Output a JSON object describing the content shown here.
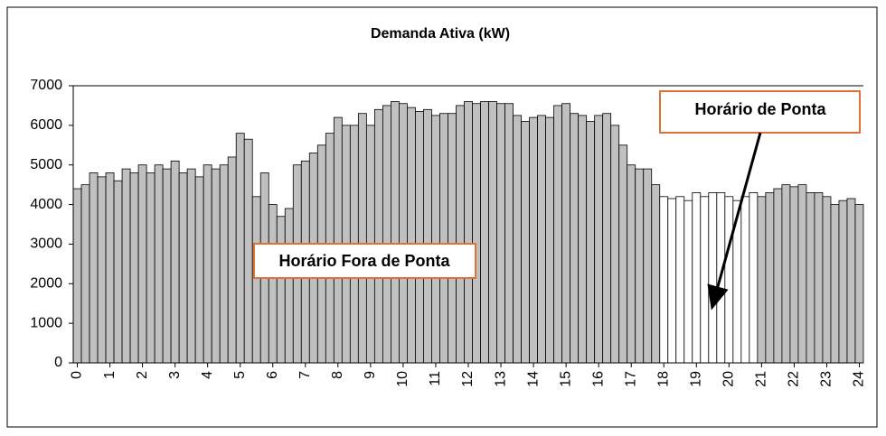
{
  "chart_data": {
    "type": "bar",
    "title": "Demanda Ativa (kW)",
    "categories": [
      "0",
      null,
      null,
      null,
      "1",
      null,
      null,
      null,
      "2",
      null,
      null,
      null,
      "3",
      null,
      null,
      null,
      "4",
      null,
      null,
      null,
      "5",
      null,
      null,
      null,
      "6",
      null,
      null,
      null,
      "7",
      null,
      null,
      null,
      "8",
      null,
      null,
      null,
      "9",
      null,
      null,
      null,
      "10",
      null,
      null,
      null,
      "11",
      null,
      null,
      null,
      "12",
      null,
      null,
      null,
      "13",
      null,
      null,
      null,
      "14",
      null,
      null,
      null,
      "15",
      null,
      null,
      null,
      "16",
      null,
      null,
      null,
      "17",
      null,
      null,
      null,
      "18",
      null,
      null,
      null,
      "19",
      null,
      null,
      null,
      "20",
      null,
      null,
      null,
      "21",
      null,
      null,
      null,
      "22",
      null,
      null,
      null,
      "23",
      null,
      null,
      null,
      "24"
    ],
    "values": [
      4400,
      4500,
      4800,
      4700,
      4800,
      4600,
      4900,
      4800,
      5000,
      4800,
      5000,
      4900,
      5100,
      4800,
      4900,
      4700,
      5000,
      4900,
      5000,
      5200,
      5800,
      5650,
      4200,
      4800,
      4000,
      3700,
      3900,
      5000,
      5100,
      5300,
      5500,
      5800,
      6200,
      6000,
      6000,
      6300,
      6000,
      6400,
      6500,
      6600,
      6550,
      6450,
      6350,
      6400,
      6250,
      6300,
      6300,
      6500,
      6600,
      6550,
      6600,
      6600,
      6550,
      6550,
      6250,
      6100,
      6200,
      6250,
      6200,
      6500,
      6550,
      6300,
      6250,
      6100,
      6250,
      6300,
      6000,
      5500,
      5000,
      4900,
      4900,
      4500,
      4200,
      4150,
      4200,
      4100,
      4300,
      4200,
      4300,
      4300,
      4200,
      4100,
      4200,
      4300,
      4200,
      4300,
      4400,
      4500,
      4450,
      4500,
      4300,
      4300,
      4200,
      4000,
      4100,
      4150,
      4000
    ],
    "colors": [
      "#c0c0c0",
      "#c0c0c0",
      "#c0c0c0",
      "#c0c0c0",
      "#c0c0c0",
      "#c0c0c0",
      "#c0c0c0",
      "#c0c0c0",
      "#c0c0c0",
      "#c0c0c0",
      "#c0c0c0",
      "#c0c0c0",
      "#c0c0c0",
      "#c0c0c0",
      "#c0c0c0",
      "#c0c0c0",
      "#c0c0c0",
      "#c0c0c0",
      "#c0c0c0",
      "#c0c0c0",
      "#c0c0c0",
      "#c0c0c0",
      "#c0c0c0",
      "#c0c0c0",
      "#c0c0c0",
      "#c0c0c0",
      "#c0c0c0",
      "#c0c0c0",
      "#c0c0c0",
      "#c0c0c0",
      "#c0c0c0",
      "#c0c0c0",
      "#c0c0c0",
      "#c0c0c0",
      "#c0c0c0",
      "#c0c0c0",
      "#c0c0c0",
      "#c0c0c0",
      "#c0c0c0",
      "#c0c0c0",
      "#c0c0c0",
      "#c0c0c0",
      "#c0c0c0",
      "#c0c0c0",
      "#c0c0c0",
      "#c0c0c0",
      "#c0c0c0",
      "#c0c0c0",
      "#c0c0c0",
      "#c0c0c0",
      "#c0c0c0",
      "#c0c0c0",
      "#c0c0c0",
      "#c0c0c0",
      "#c0c0c0",
      "#c0c0c0",
      "#c0c0c0",
      "#c0c0c0",
      "#c0c0c0",
      "#c0c0c0",
      "#c0c0c0",
      "#c0c0c0",
      "#c0c0c0",
      "#c0c0c0",
      "#c0c0c0",
      "#c0c0c0",
      "#c0c0c0",
      "#c0c0c0",
      "#c0c0c0",
      "#c0c0c0",
      "#c0c0c0",
      "#c0c0c0",
      "#ffffff",
      "#ffffff",
      "#ffffff",
      "#ffffff",
      "#ffffff",
      "#ffffff",
      "#ffffff",
      "#ffffff",
      "#ffffff",
      "#ffffff",
      "#ffffff",
      "#ffffff",
      "#c0c0c0",
      "#c0c0c0",
      "#c0c0c0",
      "#c0c0c0",
      "#c0c0c0",
      "#c0c0c0",
      "#c0c0c0",
      "#c0c0c0",
      "#c0c0c0",
      "#c0c0c0",
      "#c0c0c0",
      "#c0c0c0",
      "#c0c0c0"
    ],
    "ylim": [
      0,
      7000
    ],
    "yticks": [
      0,
      1000,
      2000,
      3000,
      4000,
      5000,
      6000,
      7000
    ],
    "annotations": [
      "Horário Fora de Ponta",
      "Horário de Ponta"
    ]
  }
}
